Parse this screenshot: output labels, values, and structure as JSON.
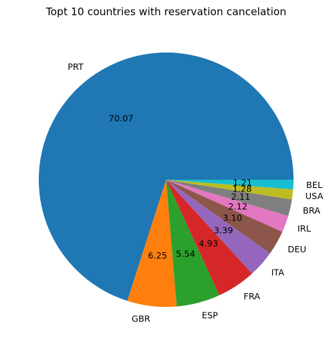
{
  "chart_data": {
    "type": "pie",
    "title": "Topt 10 countries with reservation cancelation",
    "categories": [
      "PRT",
      "GBR",
      "ESP",
      "FRA",
      "ITA",
      "DEU",
      "IRL",
      "BRA",
      "USA",
      "BEL"
    ],
    "values": [
      70.07,
      6.25,
      5.54,
      4.93,
      3.39,
      3.1,
      2.12,
      2.11,
      1.28,
      1.21
    ],
    "value_labels": [
      "70.07",
      "6.25",
      "5.54",
      "4.93",
      "3.39",
      "3.10",
      "2.12",
      "2.11",
      "1.28",
      "1.21"
    ],
    "colors": [
      "#1f77b4",
      "#ff7f0e",
      "#2ca02c",
      "#d62728",
      "#9467bd",
      "#8c564b",
      "#e377c2",
      "#7f7f7f",
      "#bcbd22",
      "#17becf"
    ],
    "start_angle_deg": 0,
    "direction": "counterclockwise",
    "legend": "none"
  }
}
